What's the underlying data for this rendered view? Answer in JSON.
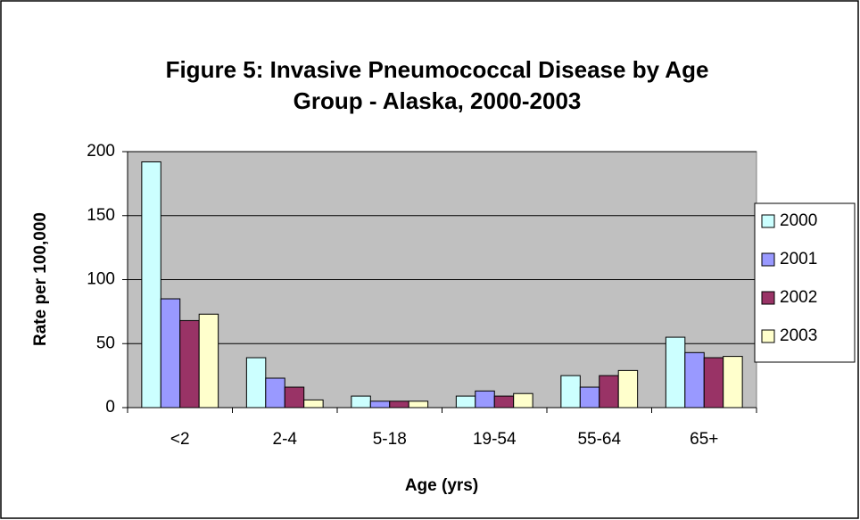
{
  "chart_data": {
    "type": "bar",
    "title": [
      "Figure 5:  Invasive Pneumococcal Disease by Age",
      "Group - Alaska, 2000-2003"
    ],
    "x_label": "Age (yrs)",
    "y_label": "Rate per 100,000",
    "categories": [
      "<2",
      "2-4",
      "5-18",
      "19-54",
      "55-64",
      "65+"
    ],
    "series": [
      {
        "name": "2000",
        "color": "#ccffff",
        "values": [
          192,
          39,
          9,
          9,
          25,
          55
        ]
      },
      {
        "name": "2001",
        "color": "#9999ff",
        "values": [
          85,
          23,
          5,
          13,
          16,
          43
        ]
      },
      {
        "name": "2002",
        "color": "#993366",
        "values": [
          68,
          16,
          5,
          9,
          25,
          39
        ]
      },
      {
        "name": "2003",
        "color": "#ffffcc",
        "values": [
          73,
          6,
          5,
          11,
          29,
          40
        ]
      }
    ],
    "ylim": [
      0,
      200
    ],
    "yticks": [
      0,
      50,
      100,
      150,
      200
    ],
    "grid": true,
    "plot_background": "#c0c0c0",
    "legend": "right"
  }
}
